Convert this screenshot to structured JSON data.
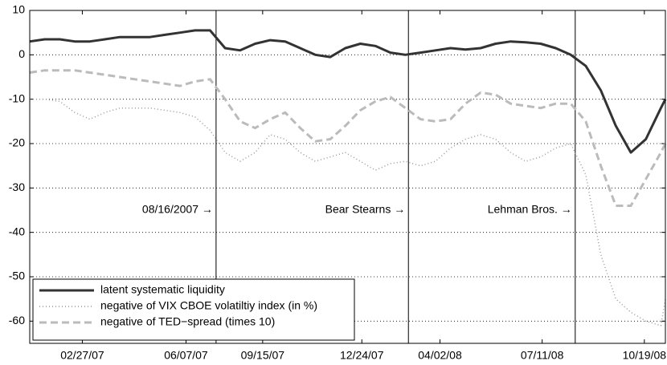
{
  "chart_data": {
    "type": "line",
    "x": [
      0,
      10,
      20,
      30,
      40,
      50,
      60,
      70,
      80,
      90,
      100,
      110,
      120,
      130,
      140,
      150,
      160,
      170,
      180,
      190,
      200,
      210,
      220,
      230,
      240,
      250,
      260,
      270,
      280,
      290,
      300,
      310,
      320,
      330,
      340,
      350,
      360,
      370,
      380,
      390,
      400,
      410,
      420,
      423
    ],
    "series": [
      {
        "name": "latent systematic liquidity",
        "color": "#333333",
        "style": "solid",
        "values": [
          3,
          3.5,
          3.5,
          3,
          3,
          3.5,
          4,
          4,
          4,
          4.5,
          5,
          5.5,
          5.5,
          1.5,
          1,
          2.5,
          3.3,
          3,
          1.5,
          0,
          -0.5,
          1.5,
          2.5,
          2,
          0.5,
          0,
          0.5,
          1,
          1.5,
          1.2,
          1.5,
          2.5,
          3,
          2.8,
          2.5,
          1.5,
          0,
          -2.5,
          -8,
          -16,
          -22,
          -19,
          -12,
          -10
        ]
      },
      {
        "name": "negative of VIX CBOE volatiltiy index (in %)",
        "color": "#999999",
        "style": "dotted",
        "values": [
          -10,
          -10,
          -10.5,
          -13,
          -14.5,
          -13,
          -12,
          -12,
          -12,
          -12.5,
          -13,
          -14,
          -17,
          -22,
          -24,
          -22,
          -18,
          -19,
          -22,
          -24,
          -23,
          -22,
          -24,
          -26,
          -24.5,
          -24,
          -25,
          -24,
          -21,
          -19,
          -18,
          -19,
          -22,
          -24,
          -23,
          -21,
          -20,
          -27,
          -45,
          -55,
          -58,
          -60,
          -61,
          -55
        ]
      },
      {
        "name": "negative of TED−spread (times 10)",
        "color": "#bbbbbb",
        "style": "dashed",
        "values": [
          -4,
          -3.5,
          -3.5,
          -3.5,
          -4,
          -4.5,
          -5,
          -5.5,
          -6,
          -6.5,
          -7,
          -6,
          -5.5,
          -10,
          -15,
          -16.5,
          -14.5,
          -13,
          -16.5,
          -19.5,
          -19,
          -16,
          -12.5,
          -10.5,
          -9.5,
          -12,
          -14.5,
          -15,
          -14.5,
          -11,
          -8.5,
          -9,
          -11,
          -11.5,
          -12,
          -11,
          -11,
          -15,
          -25,
          -34,
          -34,
          -28,
          -22,
          -20
        ]
      }
    ],
    "xlim": [
      0,
      423
    ],
    "xticks": [
      {
        "value": 35,
        "label": "02/27/07"
      },
      {
        "value": 104,
        "label": "06/07/07"
      },
      {
        "value": 155,
        "label": "09/15/07"
      },
      {
        "value": 221,
        "label": "12/24/07"
      },
      {
        "value": 273,
        "label": "04/02/08"
      },
      {
        "value": 341,
        "label": "07/11/08"
      },
      {
        "value": 409,
        "label": "10/19/08"
      }
    ],
    "ylim": [
      -65,
      10
    ],
    "yticks": [
      -60,
      -50,
      -40,
      -30,
      -20,
      -10,
      0,
      10
    ],
    "grid": true,
    "legend": "lower left",
    "annotations": [
      {
        "x": 124,
        "label": "08/16/2007 →"
      },
      {
        "x": 252,
        "label": "Bear Stearns →"
      },
      {
        "x": 363,
        "label": "Lehman Bros. →"
      }
    ]
  }
}
